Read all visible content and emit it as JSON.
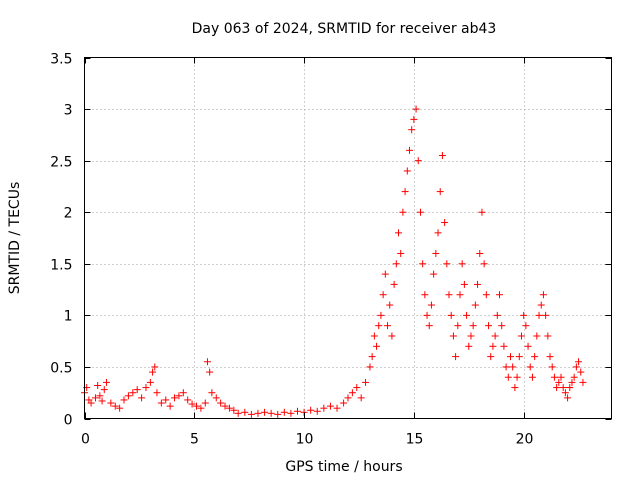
{
  "chart_data": {
    "type": "scatter",
    "title": "Day 063 of 2024, SRMTID for receiver ab43",
    "xlabel": "GPS time / hours",
    "ylabel": "SRMTID / TECUs",
    "xlim": [
      0,
      24
    ],
    "ylim": [
      0,
      3.5
    ],
    "xticks": [
      0,
      5,
      10,
      15,
      20
    ],
    "yticks": [
      0,
      0.5,
      1,
      1.5,
      2,
      2.5,
      3,
      3.5
    ],
    "xtick_labels": [
      "0",
      "5",
      "10",
      "15",
      "20"
    ],
    "ytick_labels": [
      "0",
      "0.5",
      "1",
      "1.5",
      "2",
      "2.5",
      "3",
      "3.5"
    ],
    "grid": true,
    "marker": "+",
    "color": "#ff0000",
    "series": [
      {
        "name": "ab43",
        "x": [
          0.0,
          0.1,
          0.2,
          0.3,
          0.5,
          0.6,
          0.7,
          0.8,
          0.9,
          1.0,
          1.2,
          1.4,
          1.6,
          1.8,
          2.0,
          2.2,
          2.4,
          2.6,
          2.8,
          3.0,
          3.1,
          3.2,
          3.3,
          3.5,
          3.7,
          3.9,
          4.1,
          4.3,
          4.5,
          4.7,
          4.9,
          5.1,
          5.3,
          5.5,
          5.6,
          5.7,
          5.8,
          6.0,
          6.2,
          6.4,
          6.6,
          6.8,
          7.0,
          7.3,
          7.6,
          7.9,
          8.2,
          8.5,
          8.8,
          9.1,
          9.4,
          9.7,
          10.0,
          10.3,
          10.6,
          10.9,
          11.2,
          11.5,
          11.8,
          12.0,
          12.2,
          12.4,
          12.6,
          12.8,
          13.0,
          13.1,
          13.2,
          13.3,
          13.4,
          13.5,
          13.6,
          13.7,
          13.8,
          13.9,
          14.0,
          14.1,
          14.2,
          14.3,
          14.4,
          14.5,
          14.6,
          14.7,
          14.8,
          14.9,
          15.0,
          15.1,
          15.2,
          15.3,
          15.4,
          15.5,
          15.6,
          15.7,
          15.8,
          15.9,
          16.0,
          16.1,
          16.2,
          16.3,
          16.4,
          16.5,
          16.6,
          16.7,
          16.8,
          16.9,
          17.0,
          17.1,
          17.2,
          17.3,
          17.4,
          17.5,
          17.6,
          17.7,
          17.8,
          17.9,
          18.0,
          18.1,
          18.2,
          18.3,
          18.4,
          18.5,
          18.6,
          18.7,
          18.8,
          18.9,
          19.0,
          19.1,
          19.2,
          19.3,
          19.4,
          19.5,
          19.6,
          19.7,
          19.8,
          19.9,
          20.0,
          20.1,
          20.2,
          20.3,
          20.4,
          20.5,
          20.6,
          20.7,
          20.8,
          20.9,
          21.0,
          21.1,
          21.2,
          21.3,
          21.4,
          21.5,
          21.6,
          21.7,
          21.8,
          21.9,
          22.0,
          22.1,
          22.2,
          22.3,
          22.4,
          22.5,
          22.6,
          22.7
        ],
        "y": [
          0.25,
          0.3,
          0.18,
          0.15,
          0.2,
          0.32,
          0.22,
          0.17,
          0.28,
          0.35,
          0.15,
          0.12,
          0.1,
          0.18,
          0.22,
          0.25,
          0.28,
          0.2,
          0.3,
          0.35,
          0.45,
          0.5,
          0.25,
          0.15,
          0.18,
          0.12,
          0.2,
          0.22,
          0.25,
          0.18,
          0.14,
          0.12,
          0.1,
          0.15,
          0.55,
          0.45,
          0.25,
          0.2,
          0.15,
          0.12,
          0.1,
          0.08,
          0.05,
          0.06,
          0.04,
          0.05,
          0.06,
          0.05,
          0.04,
          0.06,
          0.05,
          0.07,
          0.06,
          0.08,
          0.07,
          0.1,
          0.12,
          0.1,
          0.15,
          0.2,
          0.25,
          0.3,
          0.2,
          0.35,
          0.5,
          0.6,
          0.8,
          0.7,
          0.9,
          1.0,
          1.2,
          1.4,
          0.9,
          1.1,
          0.8,
          1.3,
          1.5,
          1.8,
          1.6,
          2.0,
          2.2,
          2.4,
          2.6,
          2.8,
          2.9,
          3.0,
          2.5,
          2.0,
          1.5,
          1.2,
          1.0,
          0.9,
          1.1,
          1.4,
          1.6,
          1.8,
          2.2,
          2.55,
          1.9,
          1.5,
          1.2,
          1.0,
          0.8,
          0.6,
          0.9,
          1.2,
          1.5,
          1.3,
          1.0,
          0.7,
          0.8,
          0.9,
          1.1,
          1.3,
          1.6,
          2.0,
          1.5,
          1.2,
          0.9,
          0.6,
          0.7,
          0.8,
          1.0,
          1.2,
          0.9,
          0.7,
          0.5,
          0.4,
          0.6,
          0.5,
          0.3,
          0.4,
          0.6,
          0.8,
          1.0,
          0.9,
          0.7,
          0.5,
          0.4,
          0.6,
          0.8,
          1.0,
          1.1,
          1.2,
          1.0,
          0.8,
          0.6,
          0.5,
          0.4,
          0.3,
          0.35,
          0.4,
          0.3,
          0.25,
          0.2,
          0.3,
          0.35,
          0.4,
          0.5,
          0.55,
          0.45,
          0.35
        ]
      }
    ]
  }
}
